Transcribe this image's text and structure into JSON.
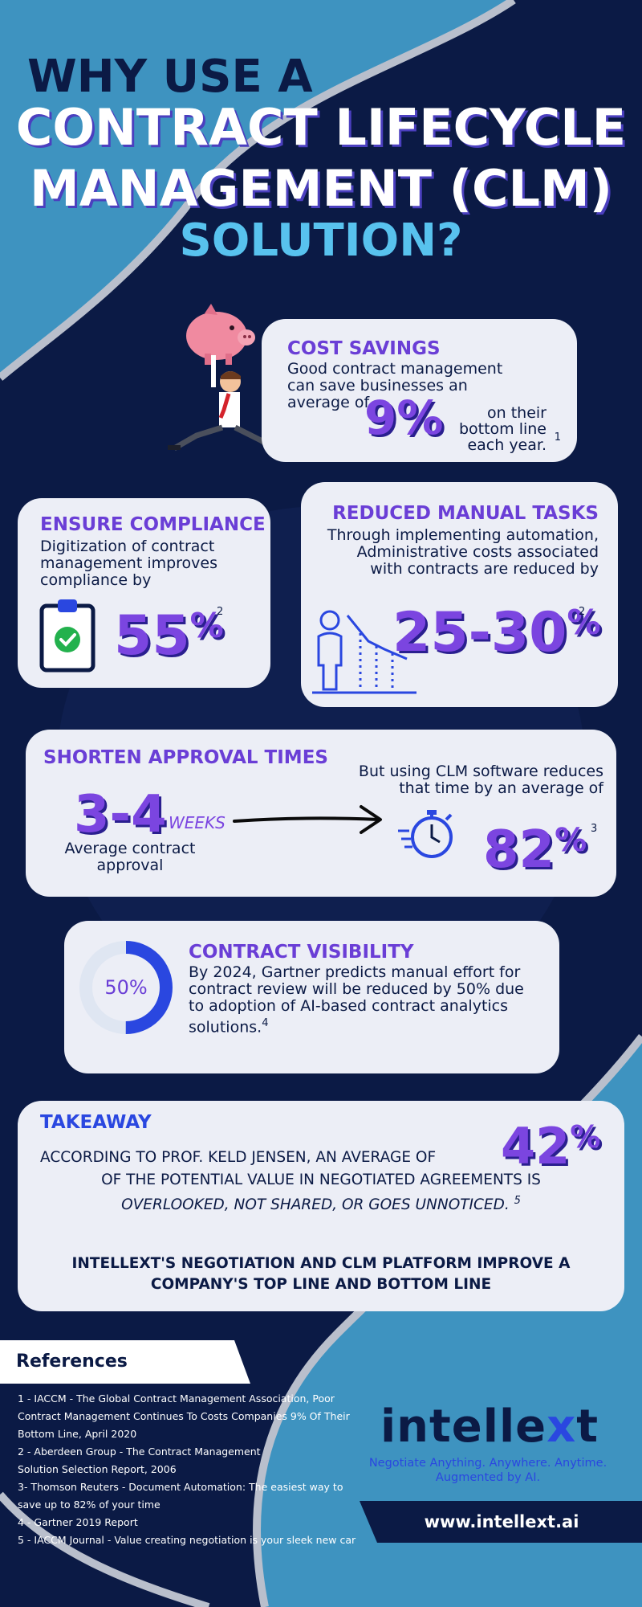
{
  "header": {
    "line1": "WHY USE A",
    "line2": "CONTRACT LIFECYCLE",
    "line3": "MANAGEMENT (CLM)",
    "line4": "SOLUTION?"
  },
  "cost_savings": {
    "heading": "COST SAVINGS",
    "body": "Good contract management can save businesses an average of",
    "stat": "9%",
    "tail1": "on their",
    "tail2": "bottom line",
    "tail3": "each year.",
    "ref": "1"
  },
  "compliance": {
    "heading": "ENSURE COMPLIANCE",
    "body": "Digitization of contract management improves compliance by",
    "stat": "55",
    "pct": "%",
    "ref": "2"
  },
  "manual_tasks": {
    "heading": "REDUCED MANUAL TASKS",
    "body1": "Through implementing automation,",
    "body2": "Administrative costs associated",
    "body3": "with contracts are reduced by",
    "stat": "25-30",
    "pct": "%",
    "ref": "2"
  },
  "approval": {
    "heading": "SHORTEN APPROVAL TIMES",
    "stat_left": "3-4",
    "unit_left": "WEEKS",
    "label_left1": "Average contract",
    "label_left2": "approval",
    "right1": "But using CLM software reduces",
    "right2": "that time by an average of",
    "stat_right": "82",
    "pct": "%",
    "ref": "3"
  },
  "visibility": {
    "heading": "CONTRACT VISIBILITY",
    "donut_label": "50%",
    "donut_value": 0.5,
    "body": "By 2024, Gartner predicts manual effort for contract review will be reduced by 50% due to adoption of AI-based contract analytics solutions.",
    "ref": "4"
  },
  "takeaway": {
    "heading": "TAKEAWAY",
    "line1": "ACCORDING TO PROF. KELD JENSEN, AN AVERAGE OF",
    "stat": "42",
    "pct": "%",
    "line2": "OF THE POTENTIAL VALUE IN NEGOTIATED AGREEMENTS IS",
    "line3": "OVERLOOKED, NOT SHARED, OR GOES UNNOTICED.",
    "ref": "5",
    "closing1": "INTELLEXT'S NEGOTIATION AND CLM PLATFORM IMPROVE A",
    "closing2": "COMPANY'S TOP LINE AND BOTTOM LINE"
  },
  "references": {
    "title": "References",
    "lines": [
      "1 - IACCM - The Global Contract Management Association, Poor",
      "Contract Management Continues To Costs Companies 9% Of Their",
      "Bottom Line, April 2020",
      "2 - Aberdeen Group - The Contract Management",
      "Solution Selection Report, 2006",
      "3- Thomson Reuters - Document Automation: The easiest way to",
      "save up to 82% of your time",
      "4 - Gartner 2019 Report",
      "5 - IACCM Journal - Value creating negotiation is your sleek new car"
    ]
  },
  "brand": {
    "logo_a": "intelle",
    "logo_x": "x",
    "logo_b": "t",
    "tagline1": "Negotiate Anything. Anywhere. Anytime.",
    "tagline2": "Augmented by AI.",
    "url": "www.intellext.ai"
  },
  "colors": {
    "navy": "#0b1a45",
    "mid_blue": "#3e93c0",
    "light_blue": "#58c2ee",
    "purple": "#7b45e0",
    "card": "#eceef6",
    "accent_blue": "#2a47e0"
  }
}
